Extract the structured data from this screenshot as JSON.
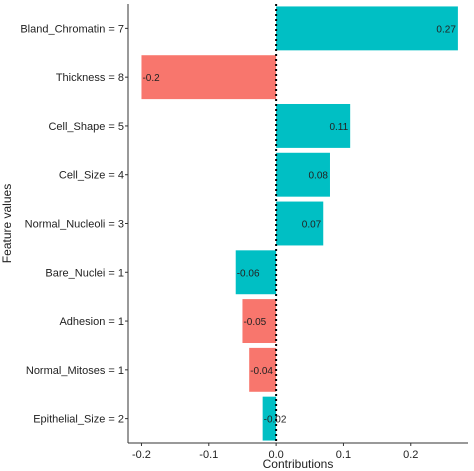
{
  "chart_data": {
    "type": "bar",
    "orientation": "horizontal",
    "xlabel": "Contributions",
    "ylabel": "Feature values",
    "xlim": [
      -0.22,
      0.285
    ],
    "xticks": [
      -0.2,
      -0.1,
      0.0,
      0.1,
      0.2
    ],
    "xtick_labels": [
      "-0.2",
      "-0.1",
      "0.0",
      "0.1",
      "0.2"
    ],
    "reference_line": 0,
    "grid": false,
    "categories": [
      "Bland_Chromatin = 7",
      "Thickness = 8",
      "Cell_Shape = 5",
      "Cell_Size = 4",
      "Normal_Nucleoli = 3",
      "Bare_Nuclei = 1",
      "Adhesion = 1",
      "Normal_Mitoses = 1",
      "Epithelial_Size = 2"
    ],
    "values": [
      0.27,
      -0.2,
      0.11,
      0.08,
      0.07,
      -0.06,
      -0.05,
      -0.04,
      -0.02
    ],
    "value_labels": [
      "0.27",
      "-0.2",
      "0.11",
      "0.08",
      "0.07",
      "-0.06",
      "-0.05",
      "-0.04",
      "-0.02"
    ],
    "colors": [
      "#00BFC4",
      "#F8766D",
      "#00BFC4",
      "#00BFC4",
      "#00BFC4",
      "#00BFC4",
      "#F8766D",
      "#F8766D",
      "#00BFC4"
    ]
  }
}
